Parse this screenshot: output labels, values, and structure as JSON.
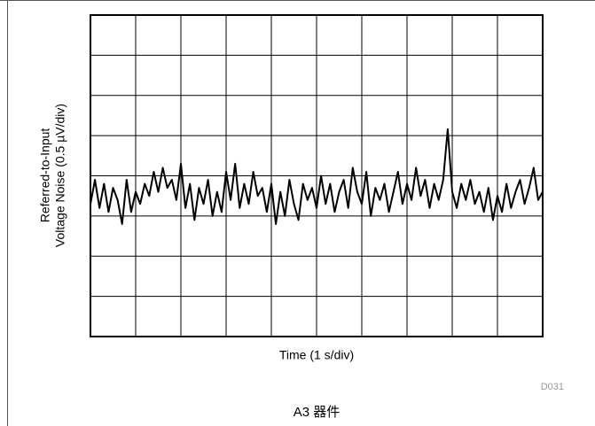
{
  "chart_data": {
    "type": "line",
    "xlabel": "Time (1 s/div)",
    "ylabel": [
      "Referred-to-Input",
      "Voltage Noise (0.5 µV/div)"
    ],
    "code": "D031",
    "caption": "A3 器件",
    "x": [
      0,
      0.1,
      0.2,
      0.3,
      0.4,
      0.5,
      0.6,
      0.7,
      0.8,
      0.9,
      1,
      1.1,
      1.2,
      1.3,
      1.4,
      1.5,
      1.6,
      1.7,
      1.8,
      1.9,
      2,
      2.1,
      2.2,
      2.3,
      2.4,
      2.5,
      2.6,
      2.7,
      2.8,
      2.9,
      3,
      3.1,
      3.2,
      3.3,
      3.4,
      3.5,
      3.6,
      3.7,
      3.8,
      3.9,
      4,
      4.1,
      4.2,
      4.3,
      4.4,
      4.5,
      4.6,
      4.7,
      4.8,
      4.9,
      5,
      5.1,
      5.2,
      5.3,
      5.4,
      5.5,
      5.6,
      5.7,
      5.8,
      5.9,
      6,
      6.1,
      6.2,
      6.3,
      6.4,
      6.5,
      6.6,
      6.7,
      6.8,
      6.9,
      7,
      7.1,
      7.2,
      7.3,
      7.4,
      7.5,
      7.6,
      7.7,
      7.8,
      7.9,
      8,
      8.1,
      8.2,
      8.3,
      8.4,
      8.5,
      8.6,
      8.7,
      8.8,
      8.9,
      9,
      9.1,
      9.2,
      9.3,
      9.4,
      9.5,
      9.6,
      9.7,
      9.8,
      9.9,
      10
    ],
    "series": [
      {
        "color": "#000000",
        "values": [
          -0.35,
          -0.05,
          -0.4,
          -0.1,
          -0.45,
          -0.15,
          -0.3,
          -0.6,
          -0.05,
          -0.45,
          -0.2,
          -0.35,
          -0.1,
          -0.25,
          0.05,
          -0.2,
          0.1,
          -0.15,
          -0.05,
          -0.3,
          0.15,
          -0.4,
          -0.1,
          -0.55,
          -0.15,
          -0.35,
          -0.05,
          -0.5,
          -0.2,
          -0.45,
          0.05,
          -0.3,
          0.15,
          -0.4,
          -0.1,
          -0.35,
          0.05,
          -0.25,
          -0.15,
          -0.45,
          -0.1,
          -0.6,
          -0.2,
          -0.5,
          -0.05,
          -0.35,
          -0.55,
          -0.1,
          -0.3,
          -0.15,
          -0.4,
          0.0,
          -0.35,
          -0.1,
          -0.45,
          -0.2,
          -0.05,
          -0.4,
          0.1,
          -0.2,
          -0.35,
          0.05,
          -0.5,
          -0.15,
          -0.3,
          -0.1,
          -0.45,
          -0.2,
          0.05,
          -0.35,
          -0.1,
          -0.3,
          0.1,
          -0.25,
          -0.05,
          -0.4,
          -0.1,
          -0.3,
          -0.05,
          0.58,
          -0.2,
          -0.4,
          -0.1,
          -0.3,
          -0.05,
          -0.35,
          -0.2,
          -0.45,
          -0.15,
          -0.55,
          -0.25,
          -0.45,
          -0.1,
          -0.4,
          -0.2,
          -0.05,
          -0.35,
          -0.15,
          0.1,
          -0.3,
          -0.2
        ]
      }
    ],
    "xlim": [
      0,
      10
    ],
    "xticks": [
      0,
      1,
      2,
      3,
      4,
      5,
      6,
      7,
      8,
      9,
      10
    ],
    "ylim": [
      -2,
      2
    ],
    "yticks": [
      -2,
      -1.5,
      -1,
      -0.5,
      0,
      0.5,
      1,
      1.5,
      2
    ],
    "grid": true
  }
}
